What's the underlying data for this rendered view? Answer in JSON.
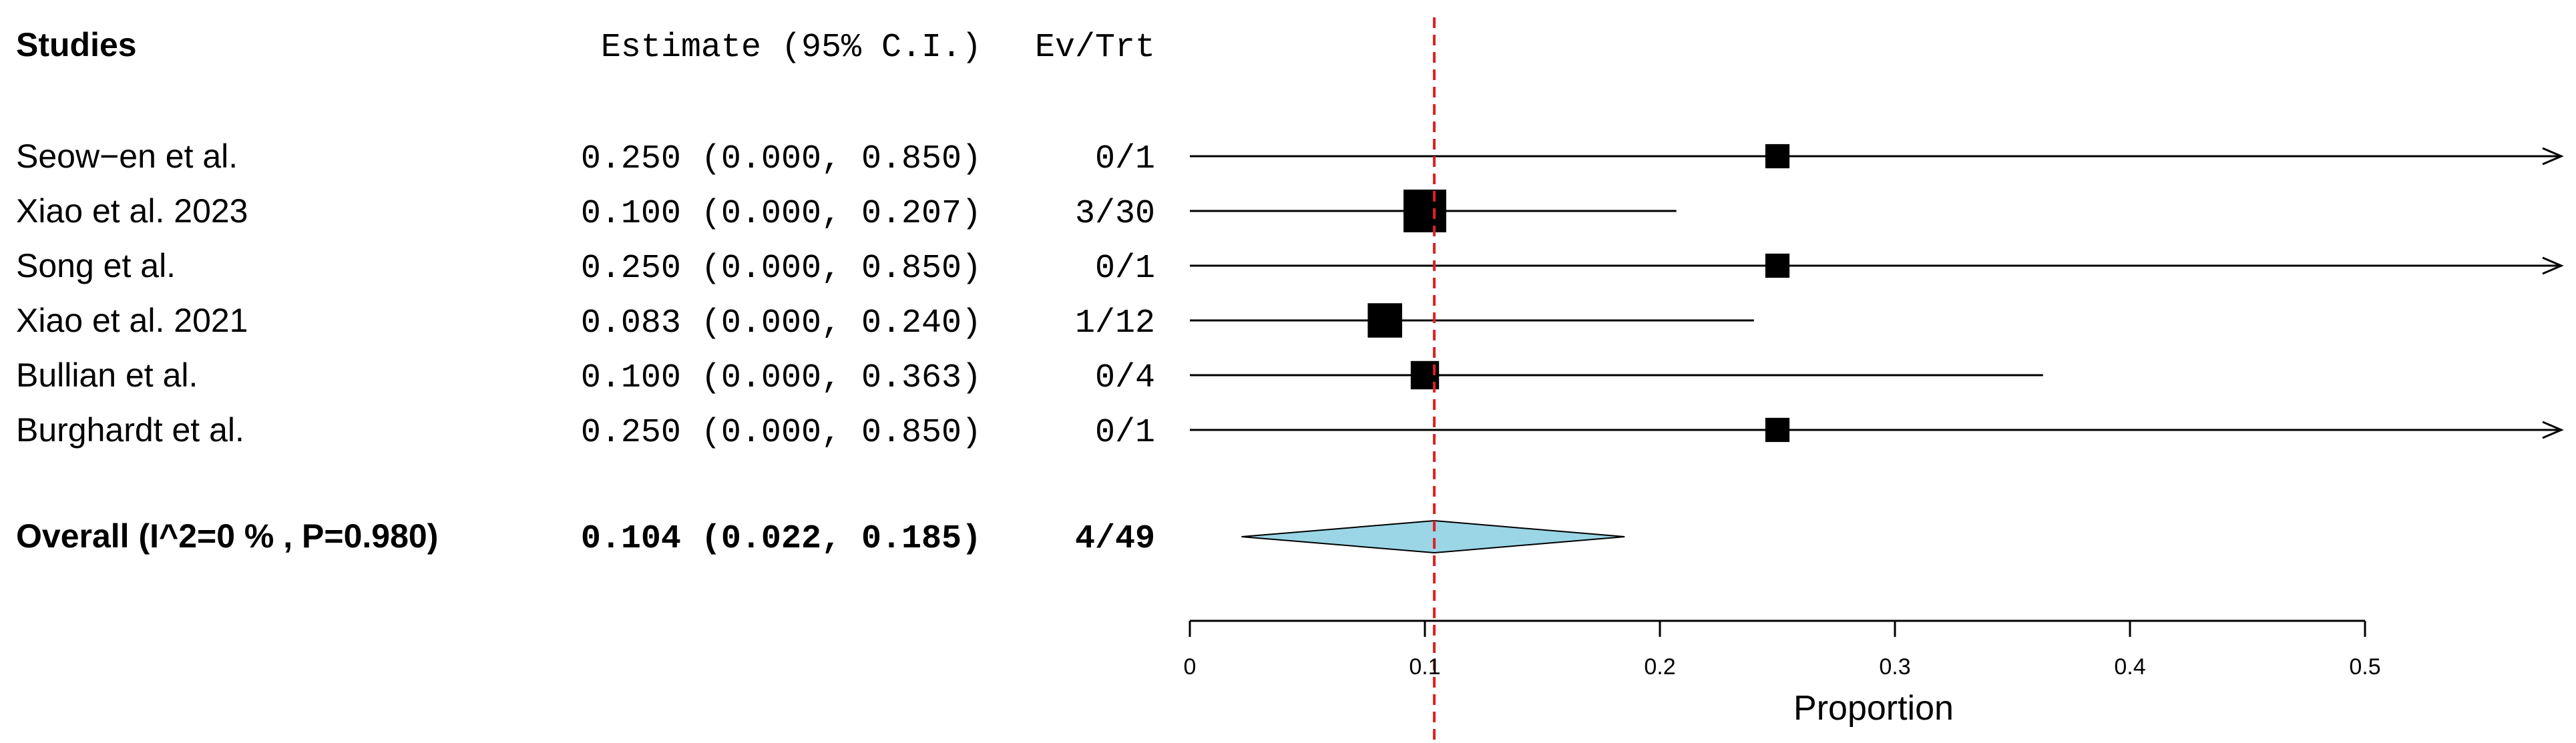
{
  "chart_data": {
    "type": "forest",
    "headers": {
      "studies": "Studies",
      "estimate": "Estimate (95% C.I.)",
      "events": "Ev/Trt"
    },
    "studies": [
      {
        "name": "Seow−en et al.",
        "ci_text": "0.250 (0.000, 0.850)",
        "events_text": "0/1",
        "estimate": 0.25,
        "lower": 0.0,
        "upper": 0.85,
        "weight": 1
      },
      {
        "name": " Xiao et al. 2023",
        "ci_text": "0.100 (0.000, 0.207)",
        "events_text": "3/30",
        "estimate": 0.1,
        "lower": 0.0,
        "upper": 0.207,
        "weight": 30
      },
      {
        "name": "Song et al.",
        "ci_text": "0.250 (0.000, 0.850)",
        "events_text": "0/1",
        "estimate": 0.25,
        "lower": 0.0,
        "upper": 0.85,
        "weight": 1
      },
      {
        "name": "Xiao et al. 2021",
        "ci_text": "0.083 (0.000, 0.240)",
        "events_text": "1/12",
        "estimate": 0.083,
        "lower": 0.0,
        "upper": 0.24,
        "weight": 12
      },
      {
        "name": "Bullian et al.",
        "ci_text": "0.100 (0.000, 0.363)",
        "events_text": "0/4",
        "estimate": 0.1,
        "lower": 0.0,
        "upper": 0.363,
        "weight": 4
      },
      {
        "name": "Burghardt et al.",
        "ci_text": "0.250 (0.000, 0.850)",
        "events_text": "0/1",
        "estimate": 0.25,
        "lower": 0.0,
        "upper": 0.85,
        "weight": 1
      }
    ],
    "overall": {
      "label": "Overall (I^2=0 % , P=0.980)",
      "ci_text": "0.104 (0.022, 0.185)",
      "events_text": "4/49",
      "estimate": 0.104,
      "lower": 0.022,
      "upper": 0.185
    },
    "xlabel": "Proportion",
    "xlim": [
      0,
      0.5
    ],
    "xticks": [
      0,
      0.1,
      0.2,
      0.3,
      0.4,
      0.5
    ],
    "xtick_labels": [
      "0",
      "0.1",
      "0.2",
      "0.3",
      "0.4",
      "0.5"
    ],
    "reference_line": 0.104,
    "colors": {
      "diamond_fill": "#9ad6e6",
      "reference_line": "#e02020",
      "marks": "#000000"
    }
  }
}
